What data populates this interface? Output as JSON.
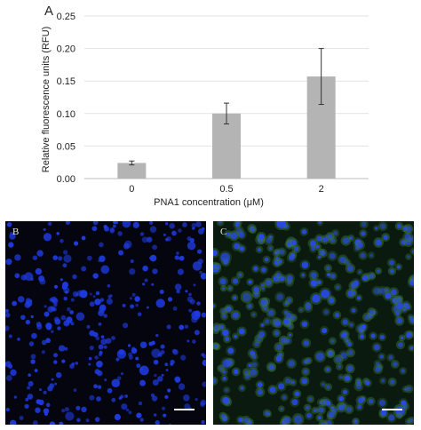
{
  "panels": {
    "a": {
      "letter": "A"
    },
    "b": {
      "letter": "B"
    },
    "c": {
      "letter": "C"
    }
  },
  "chart_data": {
    "type": "bar",
    "categories": [
      "0",
      "0.5",
      "2"
    ],
    "values": [
      0.024,
      0.1,
      0.157
    ],
    "errors": [
      0.003,
      0.016,
      0.043
    ],
    "xlabel": "PNA1 concentration (μM)",
    "ylabel": "Relative fluorescence units (RFU)",
    "ylim": [
      0,
      0.25
    ],
    "yticks": [
      "0.00",
      "0.05",
      "0.10",
      "0.15",
      "0.20",
      "0.25"
    ],
    "grid": true,
    "bar_color": "#b4b4b4"
  },
  "micrographs": {
    "b": {
      "background": "#05050f",
      "nuclei_color": "#1e3ae0",
      "tint": "none"
    },
    "c": {
      "background": "#0a1a0e",
      "nuclei_color": "#2848e8",
      "tint": "green"
    }
  }
}
